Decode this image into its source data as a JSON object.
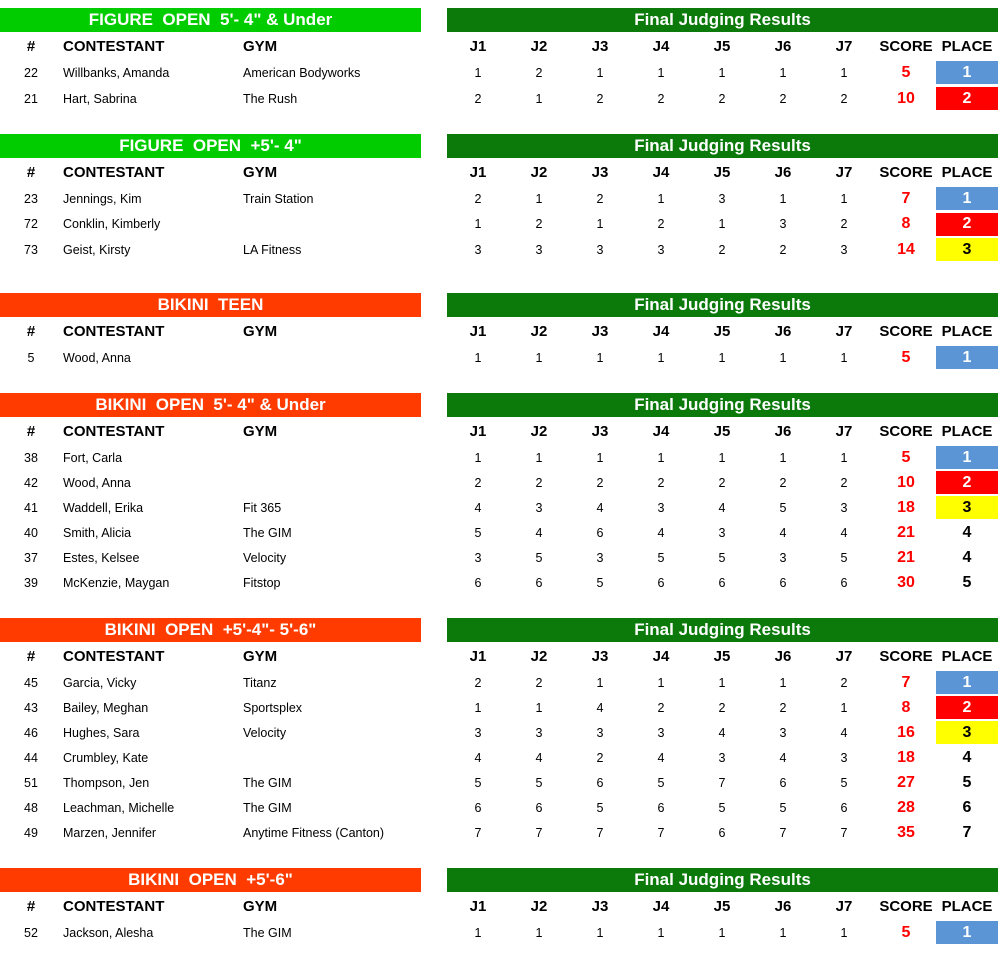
{
  "labels": {
    "results_title": "Final Judging Results",
    "num": "#",
    "contestant": "CONTESTANT",
    "gym": "GYM",
    "j1": "J1",
    "j2": "J2",
    "j3": "J3",
    "j4": "J4",
    "j5": "J5",
    "j6": "J6",
    "j7": "J7",
    "score": "SCORE",
    "place": "PLACE"
  },
  "colors": {
    "figure_bar": "#00cc00",
    "bikini_bar": "#ff3b00",
    "results_bar": "#0b7a0b",
    "place_1": "#5b95d6",
    "place_2": "#ff0000",
    "place_3": "#ffff00",
    "score_text": "#ff0000"
  },
  "sections": [
    {
      "title": "FIGURE  OPEN  5'- 4\" & Under",
      "bar_color": "green",
      "rows": [
        {
          "num": "22",
          "name": "Willbanks, Amanda",
          "gym": "American Bodyworks",
          "j": [
            "1",
            "2",
            "1",
            "1",
            "1",
            "1",
            "1"
          ],
          "score": "5",
          "place": "1"
        },
        {
          "num": "21",
          "name": "Hart, Sabrina",
          "gym": "The Rush",
          "j": [
            "2",
            "1",
            "2",
            "2",
            "2",
            "2",
            "2"
          ],
          "score": "10",
          "place": "2"
        }
      ]
    },
    {
      "title": "FIGURE  OPEN  +5'- 4\"",
      "bar_color": "green",
      "rows": [
        {
          "num": "23",
          "name": "Jennings, Kim",
          "gym": "Train Station",
          "j": [
            "2",
            "1",
            "2",
            "1",
            "3",
            "1",
            "1"
          ],
          "score": "7",
          "place": "1"
        },
        {
          "num": "72",
          "name": "Conklin, Kimberly",
          "gym": "",
          "j": [
            "1",
            "2",
            "1",
            "2",
            "1",
            "3",
            "2"
          ],
          "score": "8",
          "place": "2"
        },
        {
          "num": "73",
          "name": "Geist, Kirsty",
          "gym": "LA Fitness",
          "j": [
            "3",
            "3",
            "3",
            "3",
            "2",
            "2",
            "3"
          ],
          "score": "14",
          "place": "3"
        }
      ]
    },
    {
      "title": "BIKINI  TEEN",
      "bar_color": "orange",
      "rows": [
        {
          "num": "5",
          "name": "Wood, Anna",
          "gym": "",
          "j": [
            "1",
            "1",
            "1",
            "1",
            "1",
            "1",
            "1"
          ],
          "score": "5",
          "place": "1"
        }
      ]
    },
    {
      "title": "BIKINI  OPEN  5'- 4\" & Under",
      "bar_color": "orange",
      "rows": [
        {
          "num": "38",
          "name": "Fort, Carla",
          "gym": "",
          "j": [
            "1",
            "1",
            "1",
            "1",
            "1",
            "1",
            "1"
          ],
          "score": "5",
          "place": "1"
        },
        {
          "num": "42",
          "name": "Wood, Anna",
          "gym": "",
          "j": [
            "2",
            "2",
            "2",
            "2",
            "2",
            "2",
            "2"
          ],
          "score": "10",
          "place": "2"
        },
        {
          "num": "41",
          "name": "Waddell, Erika",
          "gym": "Fit 365",
          "j": [
            "4",
            "3",
            "4",
            "3",
            "4",
            "5",
            "3"
          ],
          "score": "18",
          "place": "3"
        },
        {
          "num": "40",
          "name": "Smith, Alicia",
          "gym": "The GIM",
          "j": [
            "5",
            "4",
            "6",
            "4",
            "3",
            "4",
            "4"
          ],
          "score": "21",
          "place": "4"
        },
        {
          "num": "37",
          "name": "Estes, Kelsee",
          "gym": "Velocity",
          "j": [
            "3",
            "5",
            "3",
            "5",
            "5",
            "3",
            "5"
          ],
          "score": "21",
          "place": "4"
        },
        {
          "num": "39",
          "name": "McKenzie, Maygan",
          "gym": "Fitstop",
          "j": [
            "6",
            "6",
            "5",
            "6",
            "6",
            "6",
            "6"
          ],
          "score": "30",
          "place": "5"
        }
      ]
    },
    {
      "title": "BIKINI  OPEN  +5'-4\"- 5'-6\"",
      "bar_color": "orange",
      "rows": [
        {
          "num": "45",
          "name": "Garcia, Vicky",
          "gym": "Titanz",
          "j": [
            "2",
            "2",
            "1",
            "1",
            "1",
            "1",
            "2"
          ],
          "score": "7",
          "place": "1"
        },
        {
          "num": "43",
          "name": "Bailey, Meghan",
          "gym": "Sportsplex",
          "j": [
            "1",
            "1",
            "4",
            "2",
            "2",
            "2",
            "1"
          ],
          "score": "8",
          "place": "2"
        },
        {
          "num": "46",
          "name": "Hughes, Sara",
          "gym": "Velocity",
          "j": [
            "3",
            "3",
            "3",
            "3",
            "4",
            "3",
            "4"
          ],
          "score": "16",
          "place": "3"
        },
        {
          "num": "44",
          "name": "Crumbley, Kate",
          "gym": "",
          "j": [
            "4",
            "4",
            "2",
            "4",
            "3",
            "4",
            "3"
          ],
          "score": "18",
          "place": "4"
        },
        {
          "num": "51",
          "name": "Thompson, Jen",
          "gym": "The GIM",
          "j": [
            "5",
            "5",
            "6",
            "5",
            "7",
            "6",
            "5"
          ],
          "score": "27",
          "place": "5"
        },
        {
          "num": "48",
          "name": "Leachman, Michelle",
          "gym": "The GIM",
          "j": [
            "6",
            "6",
            "5",
            "6",
            "5",
            "5",
            "6"
          ],
          "score": "28",
          "place": "6"
        },
        {
          "num": "49",
          "name": "Marzen, Jennifer",
          "gym": "Anytime Fitness (Canton)",
          "j": [
            "7",
            "7",
            "7",
            "7",
            "6",
            "7",
            "7"
          ],
          "score": "35",
          "place": "7"
        }
      ]
    },
    {
      "title": "BIKINI  OPEN  +5'-6\"",
      "bar_color": "orange",
      "rows": [
        {
          "num": "52",
          "name": "Jackson, Alesha",
          "gym": "The GIM",
          "j": [
            "1",
            "1",
            "1",
            "1",
            "1",
            "1",
            "1"
          ],
          "score": "5",
          "place": "1"
        }
      ]
    }
  ]
}
